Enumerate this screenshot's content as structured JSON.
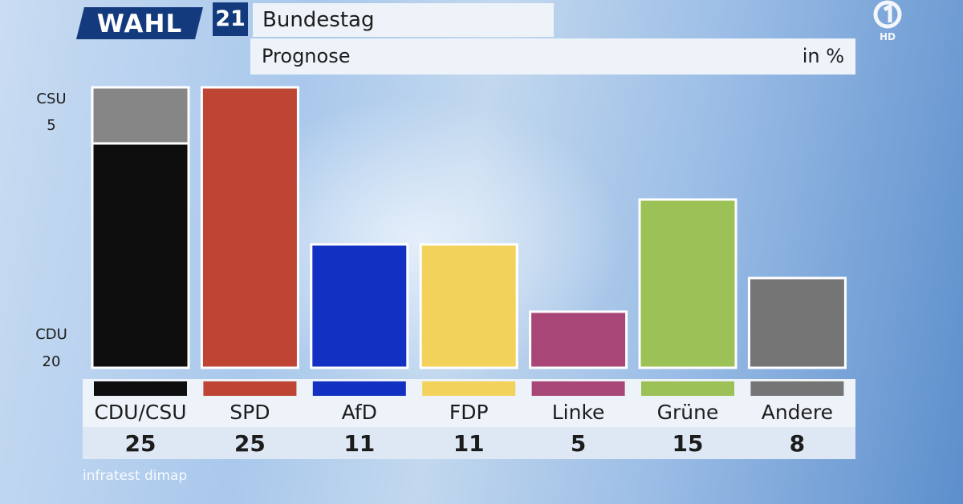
{
  "header": {
    "brand": "WAHL",
    "brand_number": "21",
    "title": "Bundestag",
    "subtitle": "Prognose",
    "unit": "in %",
    "channel_logo": "ard-1-logo",
    "channel_badge": "HD"
  },
  "stack_labels": {
    "csu_name": "CSU",
    "csu_value": "5",
    "cdu_name": "CDU",
    "cdu_value": "20"
  },
  "source": "infratest dimap",
  "colors": {
    "cdu": "#0e0e0e",
    "csu": "#868686",
    "spd": "#be4434",
    "afd": "#1230c2",
    "fdp": "#f3d25c",
    "linke": "#a84677",
    "gruene": "#9cc156",
    "andere": "#757575"
  },
  "chart_data": {
    "type": "bar",
    "categories": [
      "CDU/CSU",
      "SPD",
      "AfD",
      "FDP",
      "Linke",
      "Grüne",
      "Andere"
    ],
    "values": [
      25,
      25,
      11,
      11,
      5,
      15,
      8
    ],
    "value_labels": [
      "25",
      "25",
      "11",
      "11",
      "5",
      "15",
      "8"
    ],
    "stack_cdu_csu": {
      "CDU": 20,
      "CSU": 5
    },
    "colors": [
      "#0e0e0e",
      "#be4434",
      "#1230c2",
      "#f3d25c",
      "#a84677",
      "#9cc156",
      "#757575"
    ],
    "ylim": [
      0,
      25
    ],
    "grid": false,
    "title": "Bundestag",
    "subtitle": "Prognose",
    "unit": "in %"
  }
}
